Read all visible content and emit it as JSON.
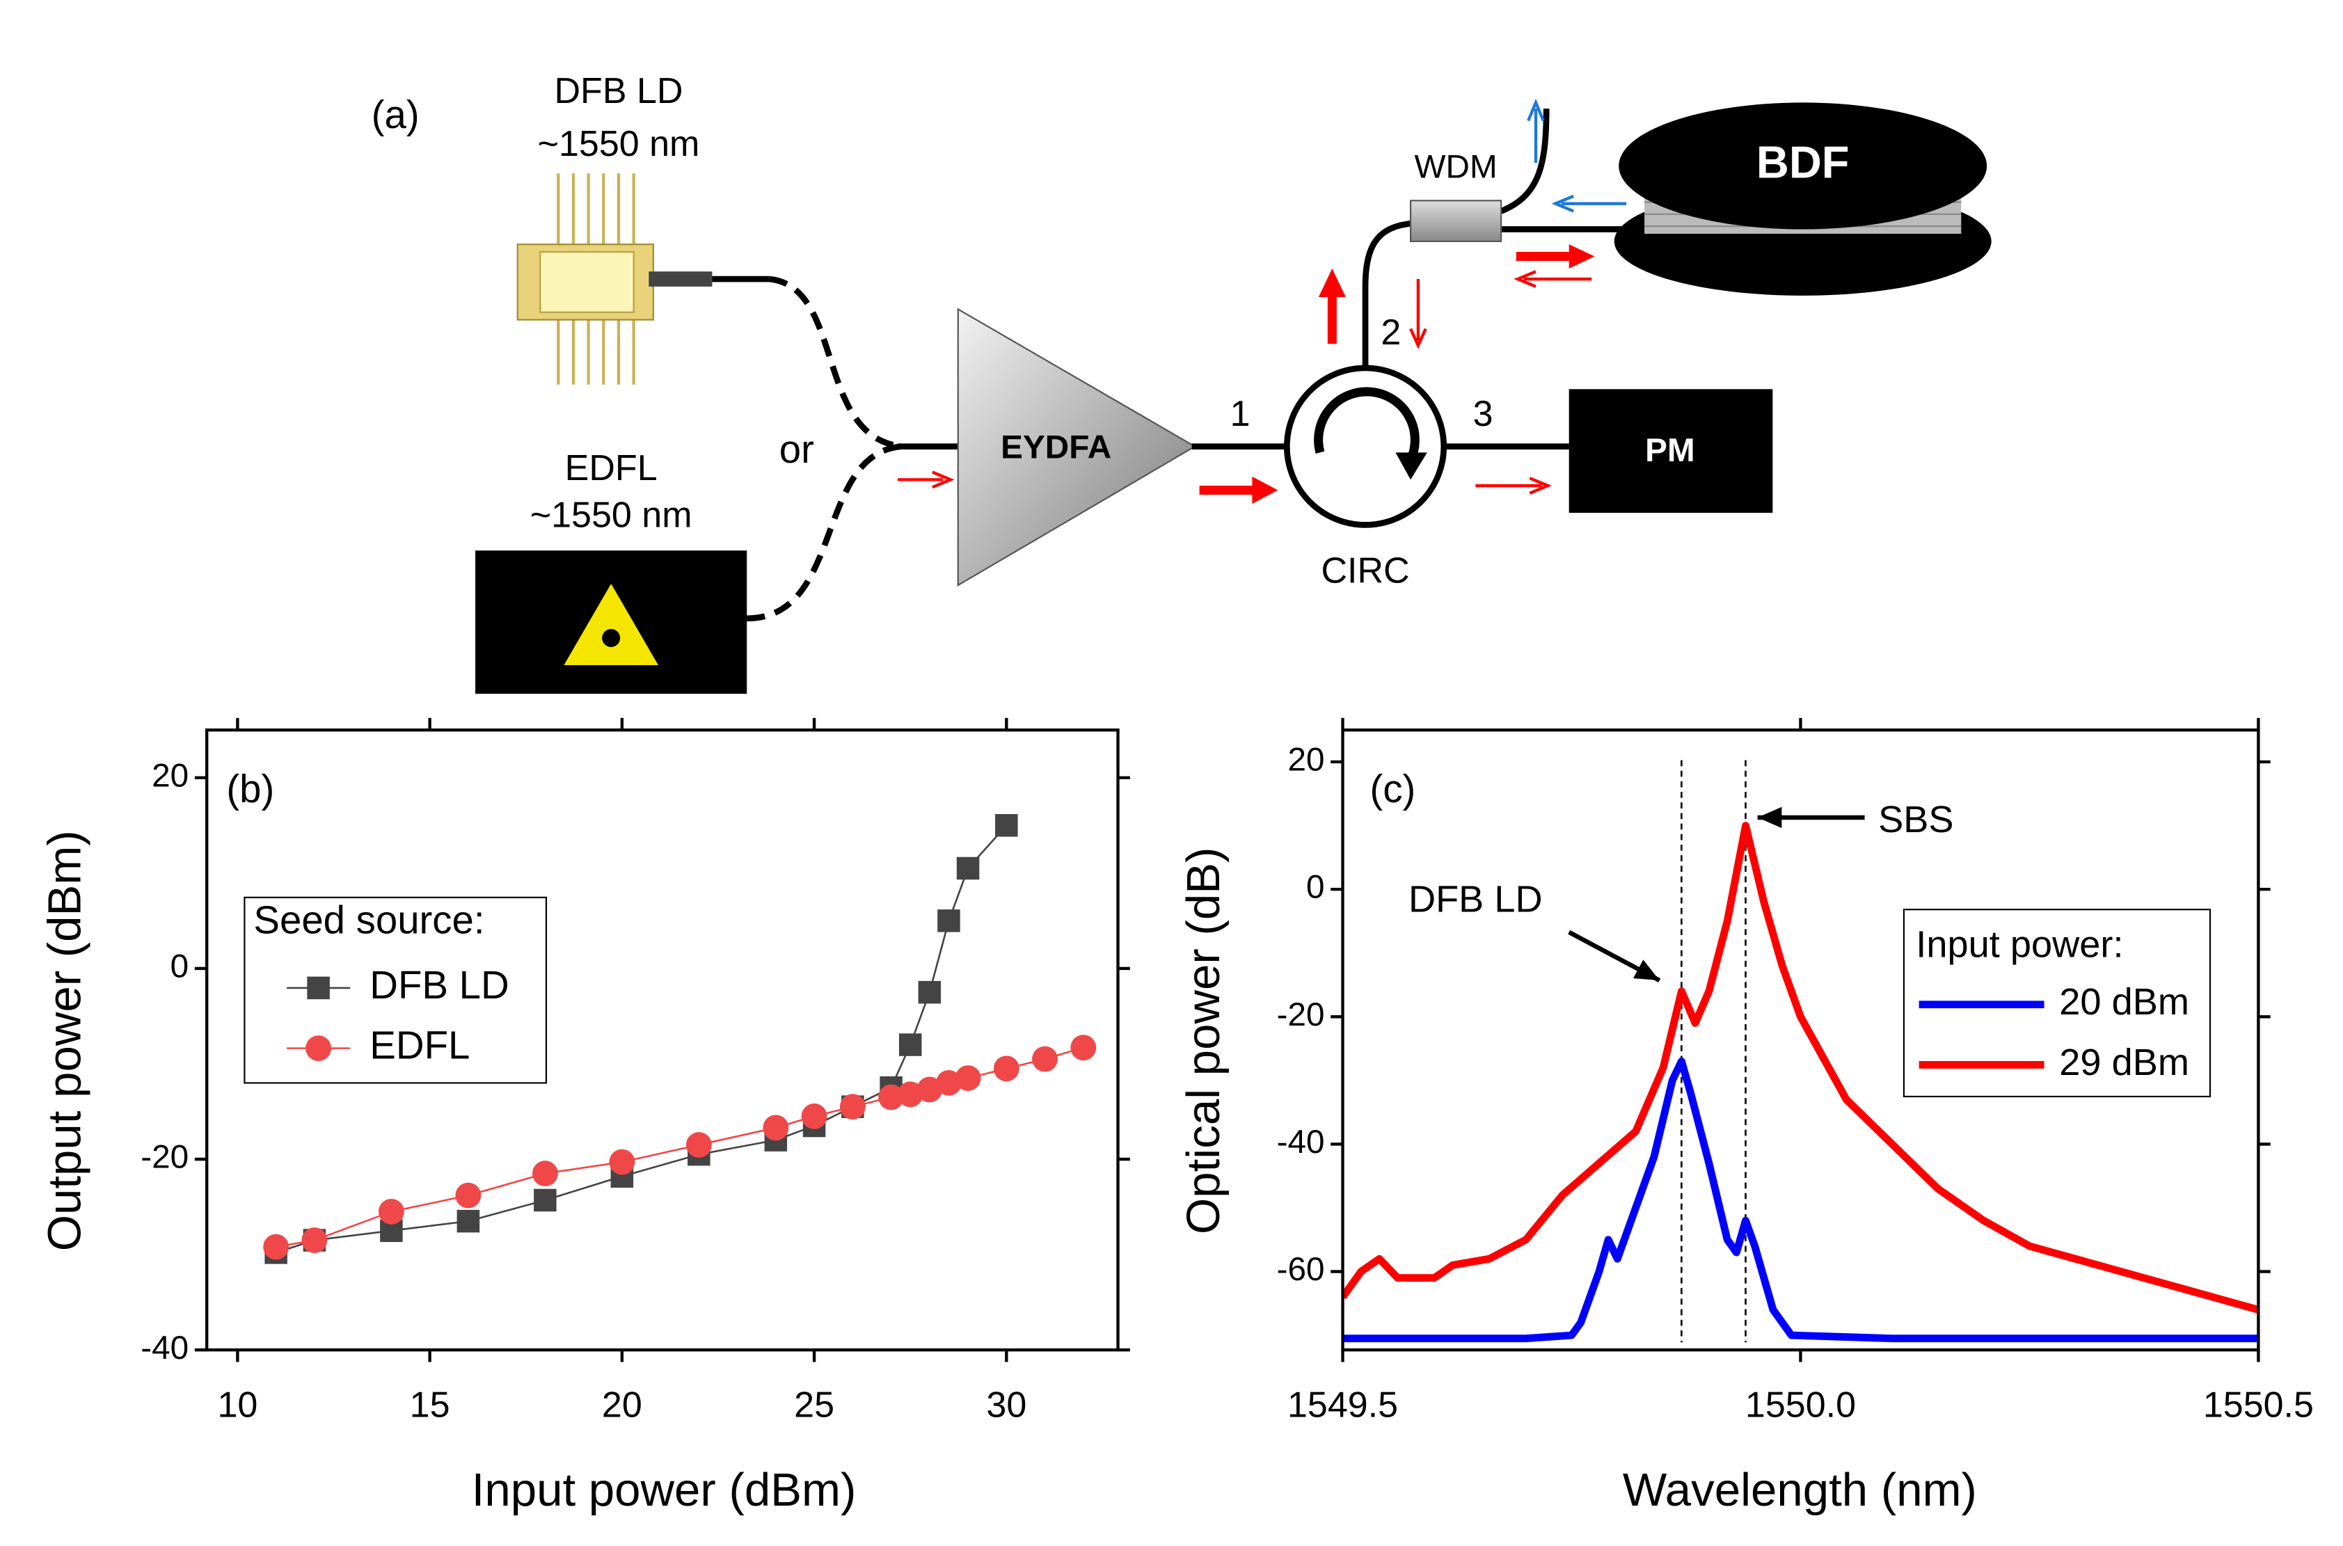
{
  "diagram": {
    "label": "(a)",
    "texts": {
      "dfb_name": "DFB LD",
      "dfb_wavelength": "~1550 nm",
      "edfl_name": "EDFL",
      "edfl_wavelength": "~1550 nm",
      "or": "or",
      "amplifier": "EYDFA",
      "port1": "1",
      "port2": "2",
      "port3": "3",
      "circulator": "CIRC",
      "power_meter": "PM",
      "wdm": "WDM",
      "fiber": "BDF"
    }
  },
  "chart_data": [
    {
      "type": "line",
      "label": "(b)",
      "x_label": "Input power (dBm)",
      "y_label": "Output power (dBm)",
      "xlim": [
        9.2,
        32.9
      ],
      "xticks": [
        10,
        15,
        20,
        25,
        30
      ],
      "ylim": [
        -40,
        25
      ],
      "yticks": [
        -40,
        -20,
        0,
        20
      ],
      "legend_title": "Seed source:",
      "legend": "upper left",
      "series": [
        {
          "name": "DFB LD",
          "color": "#444444",
          "marker": "square",
          "x": [
            11,
            12,
            14,
            16,
            18,
            20,
            22,
            24,
            25,
            26,
            27,
            27.5,
            28,
            28.5,
            29,
            30
          ],
          "values": [
            -29.8,
            -28.5,
            -27.5,
            -26.5,
            -24.3,
            -21.8,
            -19.5,
            -18,
            -16.5,
            -14.5,
            -12.5,
            -8,
            -2.5,
            5,
            10.5,
            15
          ]
        },
        {
          "name": "EDFL",
          "color": "#f04848",
          "marker": "circle",
          "x": [
            11,
            12,
            14,
            16,
            18,
            20,
            22,
            24,
            25,
            26,
            27,
            27.5,
            28,
            28.5,
            29,
            30,
            31,
            32
          ],
          "values": [
            -29.2,
            -28.5,
            -25.5,
            -23.8,
            -21.5,
            -20.3,
            -18.5,
            -16.7,
            -15.5,
            -14.5,
            -13.5,
            -13.2,
            -12.7,
            -12,
            -11.5,
            -10.5,
            -9.5,
            -8.3
          ]
        }
      ]
    },
    {
      "type": "line",
      "label": "(c)",
      "x_label": "Wavelength (nm)",
      "y_label": "Optical power (dB)",
      "xlim": [
        1549.5,
        1550.5
      ],
      "xticks": [
        1549.5,
        {
          "value": 1550,
          "label": "1550.0"
        },
        1550.5
      ],
      "ylim": [
        -72.3,
        25
      ],
      "yticks": [
        -60,
        -40,
        -20,
        0,
        20
      ],
      "legend_title": "Input power:",
      "legend": "right",
      "vlines": [
        1549.87,
        1549.94
      ],
      "annotations": [
        {
          "text": "SBS"
        },
        {
          "text": "DFB LD"
        }
      ],
      "series": [
        {
          "name": "20 dBm",
          "color": "#0000ff",
          "x": [
            1549.5,
            1549.6,
            1549.7,
            1549.75,
            1549.76,
            1549.78,
            1549.79,
            1549.8,
            1549.82,
            1549.84,
            1549.86,
            1549.87,
            1549.88,
            1549.9,
            1549.92,
            1549.93,
            1549.94,
            1549.95,
            1549.97,
            1549.99,
            1550.1,
            1550.2,
            1550.3,
            1550.4,
            1550.5
          ],
          "values": [
            -70.5,
            -70.5,
            -70.5,
            -70,
            -68,
            -60,
            -55,
            -58,
            -50,
            -42,
            -30,
            -27,
            -32,
            -43,
            -55,
            -57,
            -52,
            -56,
            -66,
            -70,
            -70.5,
            -70.5,
            -70.5,
            -70.5,
            -70.5
          ]
        },
        {
          "name": "29 dBm",
          "color": "#ff0000",
          "x": [
            1549.5,
            1549.52,
            1549.54,
            1549.56,
            1549.6,
            1549.62,
            1549.66,
            1549.7,
            1549.74,
            1549.78,
            1549.82,
            1549.85,
            1549.87,
            1549.885,
            1549.9,
            1549.92,
            1549.94,
            1549.96,
            1549.98,
            1550.0,
            1550.05,
            1550.1,
            1550.15,
            1550.2,
            1550.25,
            1550.3,
            1550.35,
            1550.4,
            1550.45,
            1550.5
          ],
          "values": [
            -64,
            -60,
            -58,
            -61,
            -61,
            -59,
            -58,
            -55,
            -48,
            -43,
            -38,
            -28,
            -16,
            -21,
            -16,
            -5,
            10,
            -2,
            -12,
            -20,
            -33,
            -40,
            -47,
            -52,
            -56,
            -58,
            -60,
            -62,
            -64,
            -66
          ]
        }
      ]
    }
  ]
}
